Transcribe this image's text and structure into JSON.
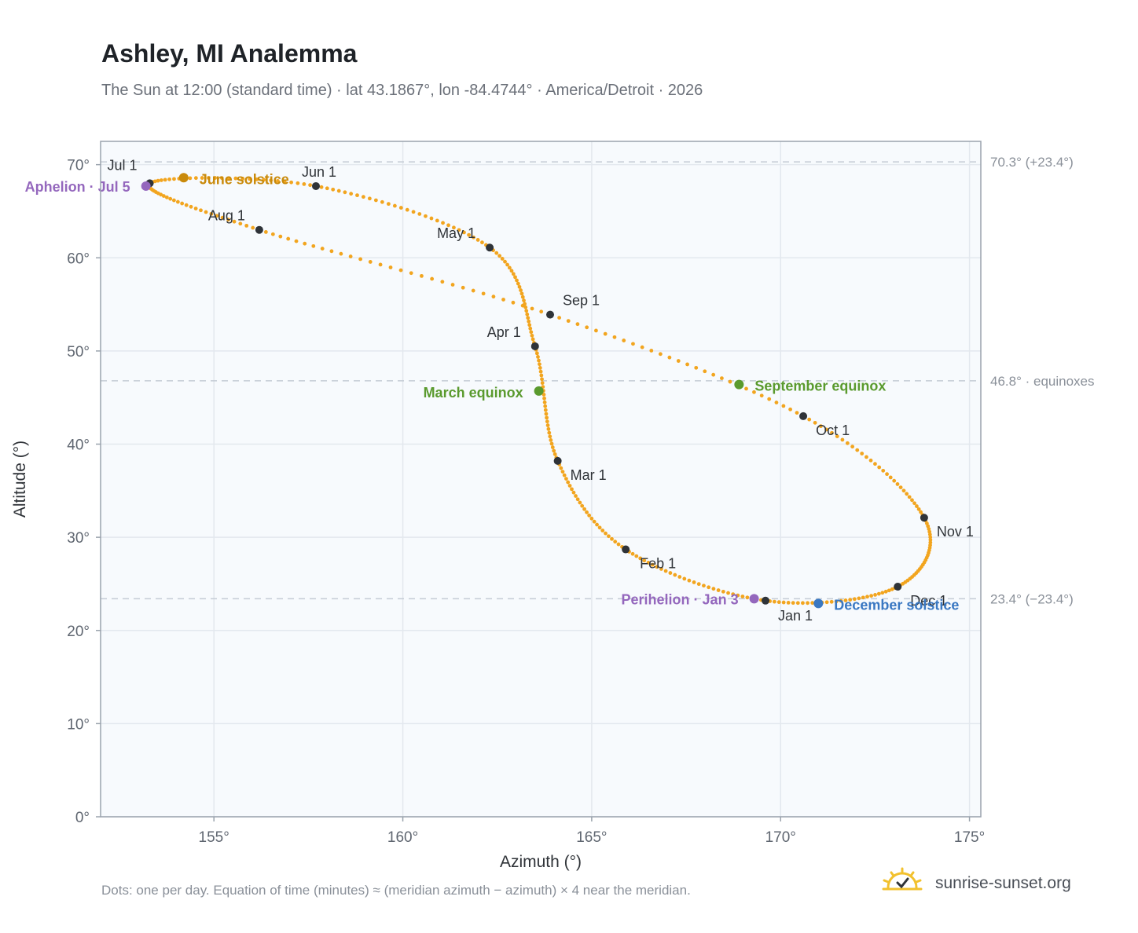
{
  "header": {
    "title": "Ashley, MI Analemma",
    "subtitle": "The Sun at 12:00 (standard time) · lat 43.1867°, lon -84.4744° · America/Detroit · 2026"
  },
  "footer": {
    "note": "Dots: one per day. Equation of time (minutes) ≈ (meridian azimuth − azimuth) × 4 near the meridian.",
    "brand": "sunrise-sunset.org"
  },
  "colors": {
    "curve": "#f2a51f",
    "month_marker": "#2f3338",
    "solstice_june": "#c98a0b",
    "solstice_december": "#3a78c2",
    "equinox": "#5a9a2e",
    "apsis": "#9467bd",
    "grid": "#e3e8ee",
    "plot_bg": "#f7fafd",
    "reference_line": "#c5ccd5"
  },
  "chart_data": {
    "type": "scatter",
    "xlabel": "Azimuth (°)",
    "ylabel": "Altitude (°)",
    "xlim": [
      152,
      175.3
    ],
    "ylim": [
      0,
      72.5
    ],
    "x_ticks": [
      155,
      160,
      165,
      170,
      175
    ],
    "x_tick_labels": [
      "155°",
      "160°",
      "165°",
      "170°",
      "175°"
    ],
    "y_ticks": [
      0,
      10,
      20,
      30,
      40,
      50,
      60,
      70
    ],
    "y_tick_labels": [
      "0°",
      "10°",
      "20°",
      "30°",
      "40°",
      "50°",
      "60°",
      "70°"
    ],
    "grid": true,
    "reference_lines": [
      {
        "y": 70.3,
        "label": "70.3° (+23.4°)"
      },
      {
        "y": 46.8,
        "label": "46.8° · equinoxes"
      },
      {
        "y": 23.4,
        "label": "23.4° (−23.4°)"
      }
    ],
    "monthly_points": [
      {
        "label": "Jan 1",
        "azimuth": 169.6,
        "altitude": 23.2
      },
      {
        "label": "Feb 1",
        "azimuth": 165.9,
        "altitude": 28.7
      },
      {
        "label": "Mar 1",
        "azimuth": 164.1,
        "altitude": 38.2
      },
      {
        "label": "Apr 1",
        "azimuth": 163.5,
        "altitude": 50.5
      },
      {
        "label": "May 1",
        "azimuth": 162.3,
        "altitude": 61.1
      },
      {
        "label": "Jun 1",
        "azimuth": 157.7,
        "altitude": 67.7
      },
      {
        "label": "Jul 1",
        "azimuth": 153.3,
        "altitude": 68.0
      },
      {
        "label": "Aug 1",
        "azimuth": 156.2,
        "altitude": 63.0
      },
      {
        "label": "Sep 1",
        "azimuth": 163.9,
        "altitude": 53.9
      },
      {
        "label": "Oct 1",
        "azimuth": 170.6,
        "altitude": 43.0
      },
      {
        "label": "Nov 1",
        "azimuth": 173.8,
        "altitude": 32.1
      },
      {
        "label": "Dec 1",
        "azimuth": 173.1,
        "altitude": 24.7
      }
    ],
    "events": [
      {
        "label": "June solstice",
        "azimuth": 154.2,
        "altitude": 68.6,
        "kind": "solstice_june"
      },
      {
        "label": "December solstice",
        "azimuth": 171.0,
        "altitude": 22.9,
        "kind": "solstice_december"
      },
      {
        "label": "March equinox",
        "azimuth": 163.6,
        "altitude": 45.7,
        "kind": "equinox"
      },
      {
        "label": "September equinox",
        "azimuth": 168.9,
        "altitude": 46.4,
        "kind": "equinox"
      },
      {
        "label": "Aphelion · Jul 5",
        "azimuth": 153.2,
        "altitude": 67.7,
        "kind": "apsis"
      },
      {
        "label": "Perihelion · Jan 3",
        "azimuth": 169.3,
        "altitude": 23.4,
        "kind": "apsis"
      }
    ]
  }
}
